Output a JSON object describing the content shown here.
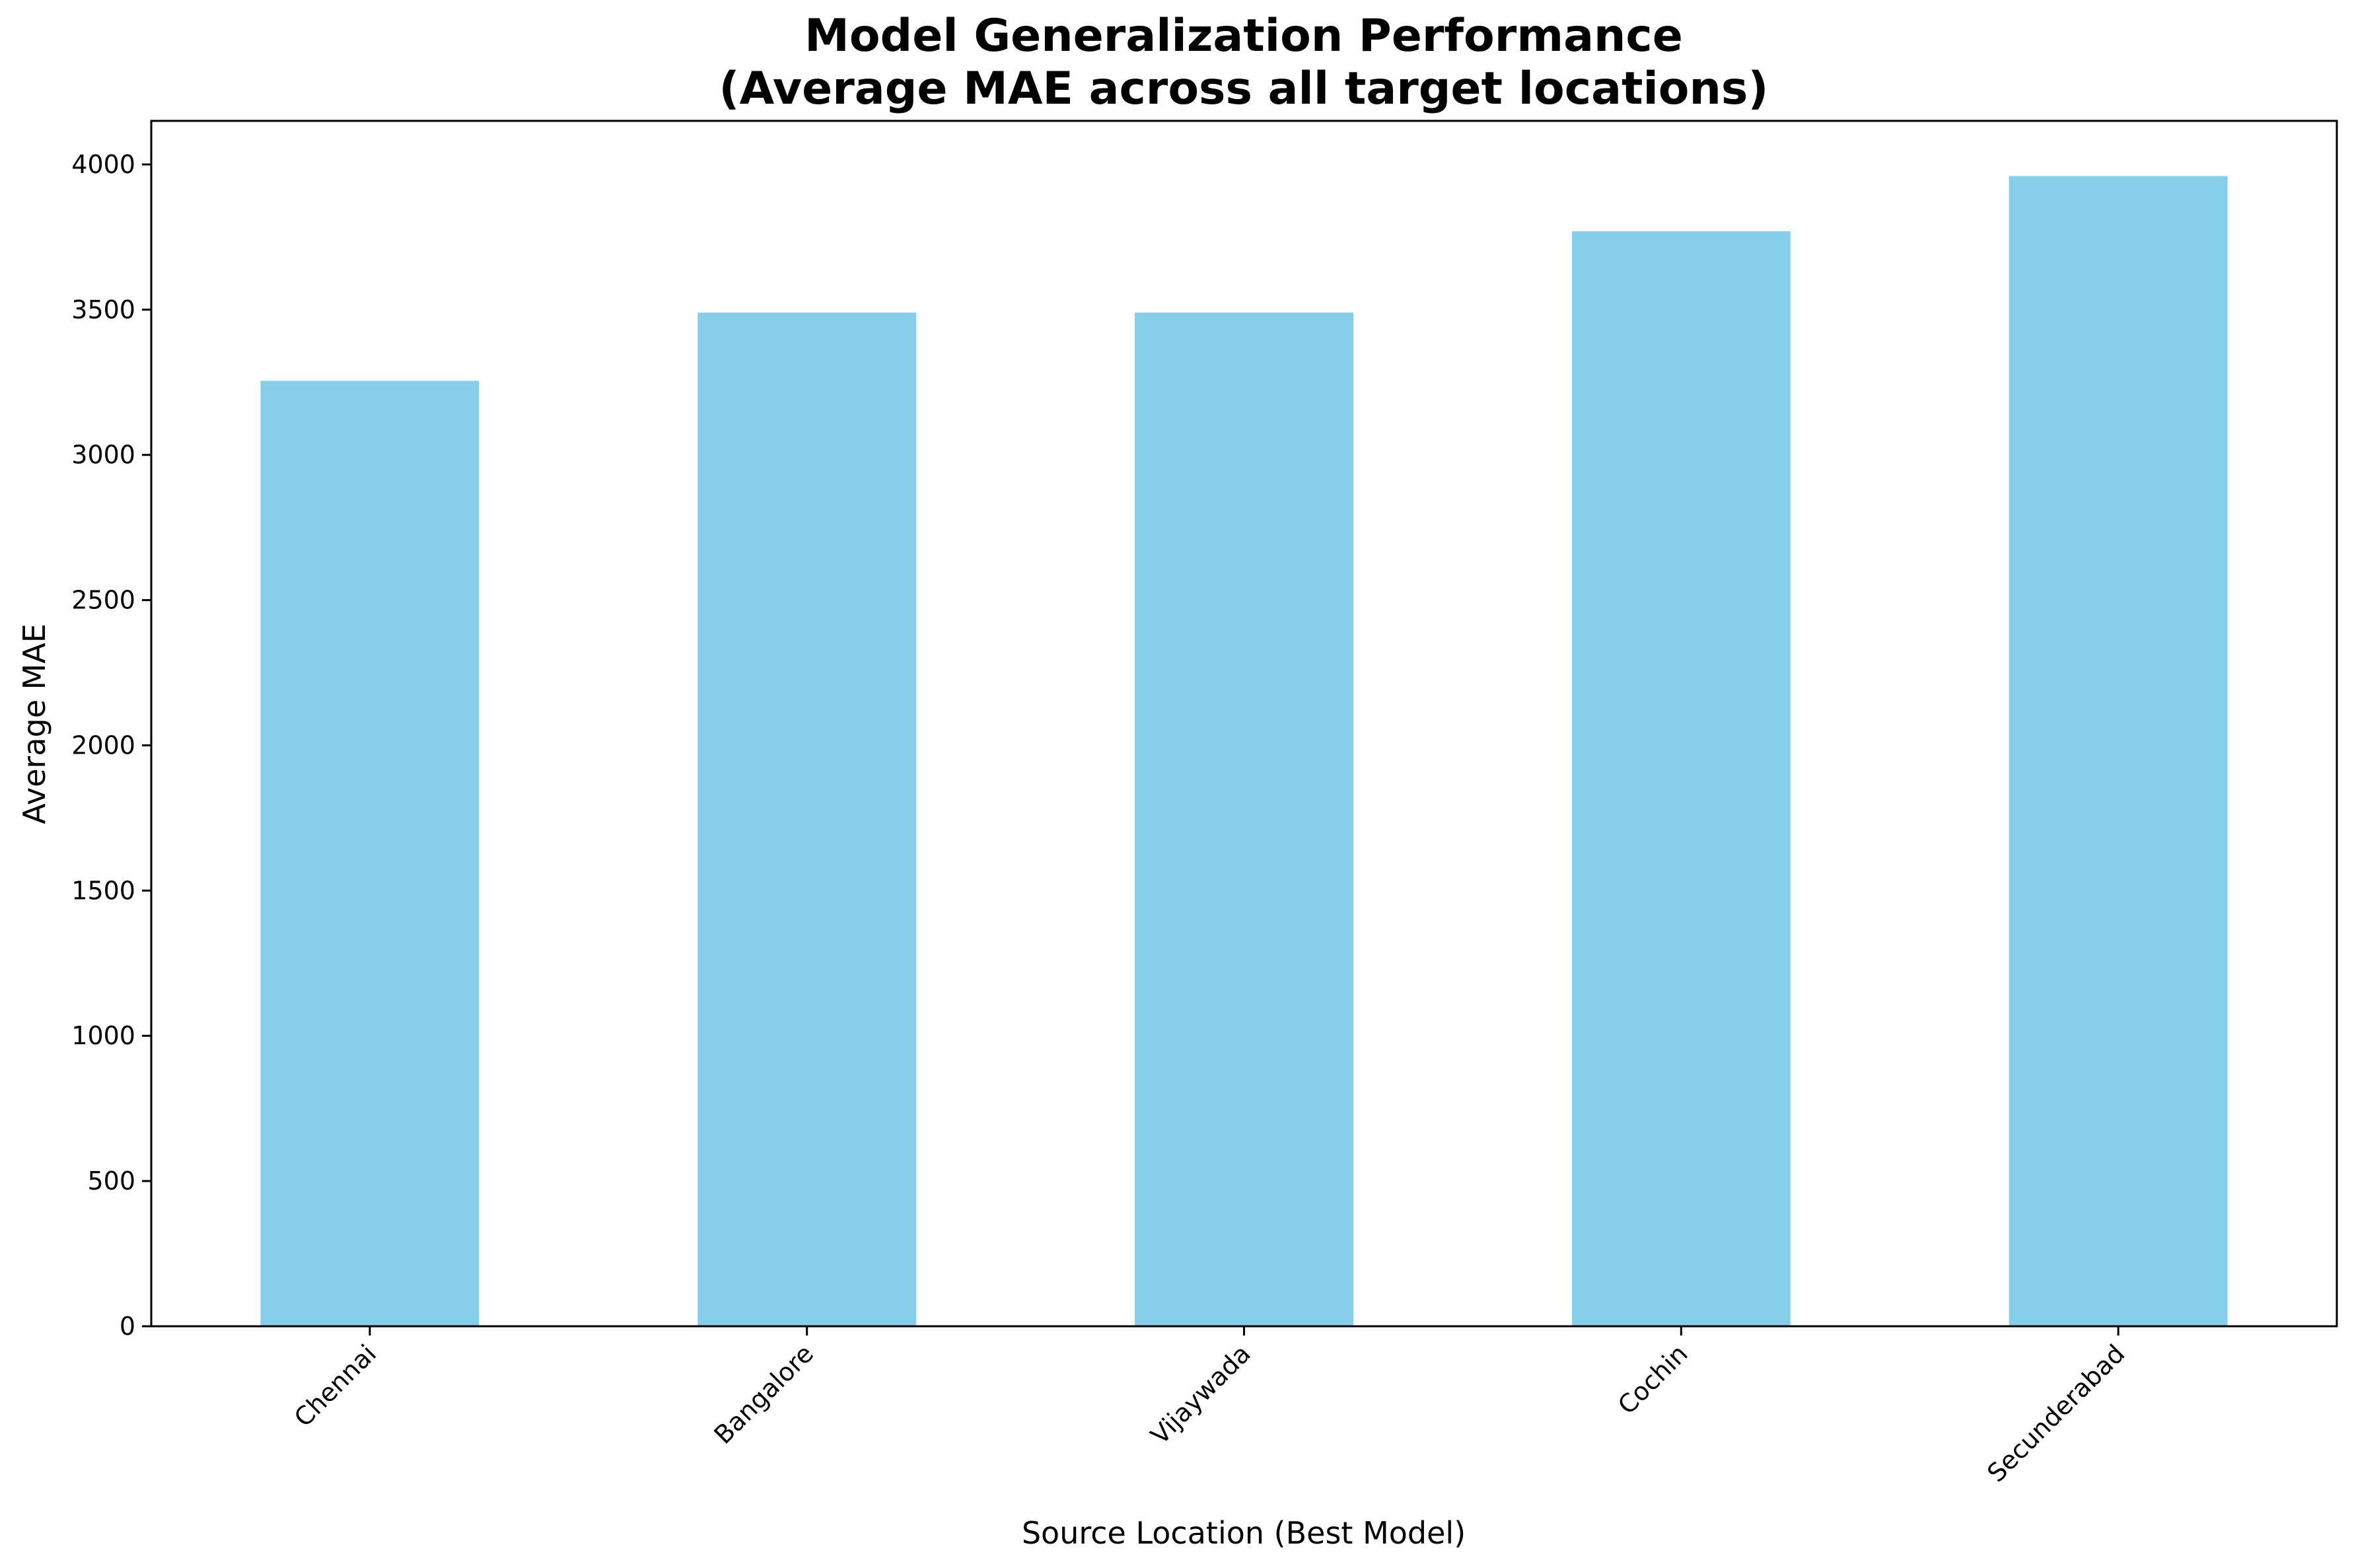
{
  "chart_data": {
    "type": "bar",
    "title": "Model Generalization Performance\n(Average MAE across all target locations)",
    "xlabel": "Source Location (Best Model)",
    "ylabel": "Average MAE",
    "categories": [
      "Chennai",
      "Bangalore",
      "Vijaywada",
      "Cochin",
      "Secunderabad"
    ],
    "values": [
      3255,
      3490,
      3490,
      3770,
      3960
    ],
    "ylim": [
      0,
      4150
    ],
    "yticks": [
      0,
      500,
      1000,
      1500,
      2000,
      2500,
      3000,
      3500,
      4000
    ],
    "bar_color": "#87CEEB",
    "grid": false,
    "legend": "none"
  }
}
